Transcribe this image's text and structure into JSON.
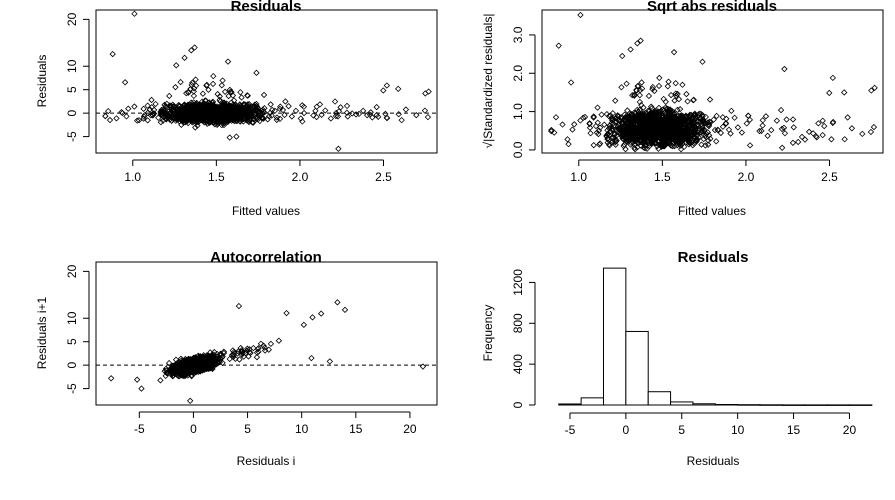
{
  "chart_data": [
    {
      "type": "scatter",
      "title": "Residuals",
      "xlabel": "Fitted values",
      "ylabel": "Residuals",
      "xlim": [
        0.78,
        2.82
      ],
      "ylim": [
        -8.5,
        22
      ],
      "xticks": [
        "1.0",
        "1.5",
        "2.0",
        "2.5"
      ],
      "xtick_values": [
        1.0,
        1.5,
        2.0,
        2.5
      ],
      "yticks": [
        "-5",
        "0",
        "5",
        "10",
        "20"
      ],
      "ytick_values": [
        -5,
        0,
        5,
        10,
        20
      ],
      "reference_line_y": 0,
      "reference_line_style": "dashed",
      "outliers": [
        [
          1.01,
          21.2
        ],
        [
          0.88,
          12.6
        ],
        [
          1.37,
          14.0
        ],
        [
          1.35,
          13.4
        ],
        [
          1.31,
          11.8
        ],
        [
          1.57,
          11.0
        ],
        [
          1.26,
          10.2
        ],
        [
          1.74,
          8.6
        ],
        [
          2.52,
          5.9
        ],
        [
          2.23,
          -7.6
        ],
        [
          2.75,
          4.2
        ],
        [
          2.77,
          4.6
        ],
        [
          1.62,
          -5.0
        ],
        [
          1.58,
          -5.2
        ]
      ],
      "cloud": {
        "n": 1500,
        "x_center": 1.48,
        "x_spread": 0.28,
        "x_range": [
          0.83,
          2.78
        ],
        "y_spread": 1.8
      }
    },
    {
      "type": "scatter",
      "title": "Sqrt abs residuals",
      "xlabel": "Fitted values",
      "ylabel": "√|Standardized residuals|",
      "xlim": [
        0.78,
        2.82
      ],
      "ylim": [
        -0.08,
        3.65
      ],
      "xticks": [
        "1.0",
        "1.5",
        "2.0",
        "2.5"
      ],
      "xtick_values": [
        1.0,
        1.5,
        2.0,
        2.5
      ],
      "yticks": [
        "0.0",
        "1.0",
        "2.0",
        "3.0"
      ],
      "ytick_values": [
        0,
        1,
        2,
        3
      ],
      "outliers": [
        [
          1.01,
          3.52
        ],
        [
          0.88,
          2.72
        ],
        [
          1.37,
          2.85
        ],
        [
          1.35,
          2.78
        ],
        [
          1.31,
          2.62
        ],
        [
          1.57,
          2.55
        ],
        [
          1.26,
          2.45
        ],
        [
          1.74,
          2.3
        ],
        [
          2.52,
          1.88
        ],
        [
          2.23,
          2.11
        ],
        [
          2.75,
          1.55
        ],
        [
          2.77,
          1.62
        ],
        [
          1.62,
          1.7
        ],
        [
          1.58,
          1.74
        ]
      ],
      "cloud": {
        "n": 1500,
        "x_center": 1.48,
        "x_spread": 0.28,
        "x_range": [
          0.83,
          2.78
        ],
        "y_center": 0.72,
        "y_spread": 0.42
      }
    },
    {
      "type": "scatter",
      "title": "Autocorrelation",
      "xlabel": "Residuals i",
      "ylabel": "Residuals i+1",
      "xlim": [
        -9,
        22.5
      ],
      "ylim": [
        -8.5,
        22
      ],
      "xticks": [
        "-5",
        "0",
        "5",
        "10",
        "15",
        "20"
      ],
      "xtick_values": [
        -5,
        0,
        5,
        10,
        15,
        20
      ],
      "yticks": [
        "-5",
        "0",
        "5",
        "10",
        "20"
      ],
      "ytick_values": [
        -5,
        0,
        5,
        10,
        20
      ],
      "reference_line_y": 0,
      "reference_line_style": "dashed",
      "outliers": [
        [
          21.2,
          -0.3
        ],
        [
          13.3,
          13.4
        ],
        [
          14.0,
          11.8
        ],
        [
          12.6,
          0.8
        ],
        [
          11.0,
          10.2
        ],
        [
          11.8,
          11.0
        ],
        [
          10.2,
          8.6
        ],
        [
          8.6,
          11.1
        ],
        [
          4.2,
          12.6
        ],
        [
          -7.6,
          -2.8
        ],
        [
          -0.3,
          -7.6
        ],
        [
          -4.8,
          -5.0
        ],
        [
          -5.2,
          -3.1
        ],
        [
          10.9,
          1.5
        ]
      ],
      "cloud": {
        "n": 1500,
        "spread": 1.8,
        "correlation": 0.55
      }
    },
    {
      "type": "bar",
      "title": "Residuals",
      "xlabel": "Residuals",
      "ylabel": "Frequency",
      "bin_edges": [
        -6,
        -4,
        -2,
        0,
        2,
        4,
        6,
        8,
        10,
        12,
        14,
        16,
        18,
        20,
        22
      ],
      "values": [
        10,
        70,
        1340,
        720,
        130,
        30,
        12,
        5,
        3,
        2,
        1,
        1,
        1,
        1
      ],
      "xlim": [
        -7.5,
        23
      ],
      "ylim": [
        0,
        1400
      ],
      "xticks": [
        "-5",
        "0",
        "5",
        "10",
        "15",
        "20"
      ],
      "xtick_values": [
        -5,
        0,
        5,
        10,
        15,
        20
      ],
      "yticks": [
        "0",
        "400",
        "800",
        "1200"
      ],
      "ytick_values": [
        0,
        400,
        800,
        1200
      ]
    }
  ]
}
